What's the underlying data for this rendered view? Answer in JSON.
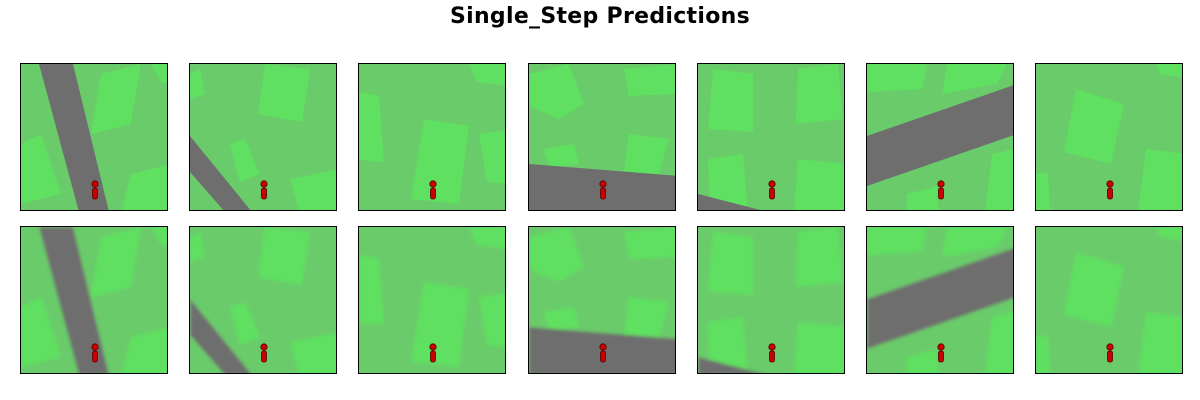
{
  "figure": {
    "title": "Single_Step Predictions"
  },
  "colors": {
    "grass": "#6ACB6A",
    "patch": "#5FE060",
    "road": "#6E6E6E",
    "agent": "#CC0000",
    "frame": "#000000"
  },
  "rows": [
    {
      "name": "row-1",
      "panels": [
        "ground-truth-1",
        "ground-truth-2",
        "ground-truth-3",
        "ground-truth-4",
        "ground-truth-5",
        "ground-truth-6",
        "ground-truth-7"
      ]
    },
    {
      "name": "row-2",
      "panels": [
        "prediction-1",
        "prediction-2",
        "prediction-3",
        "prediction-4",
        "prediction-5",
        "prediction-6",
        "prediction-7"
      ]
    }
  ]
}
